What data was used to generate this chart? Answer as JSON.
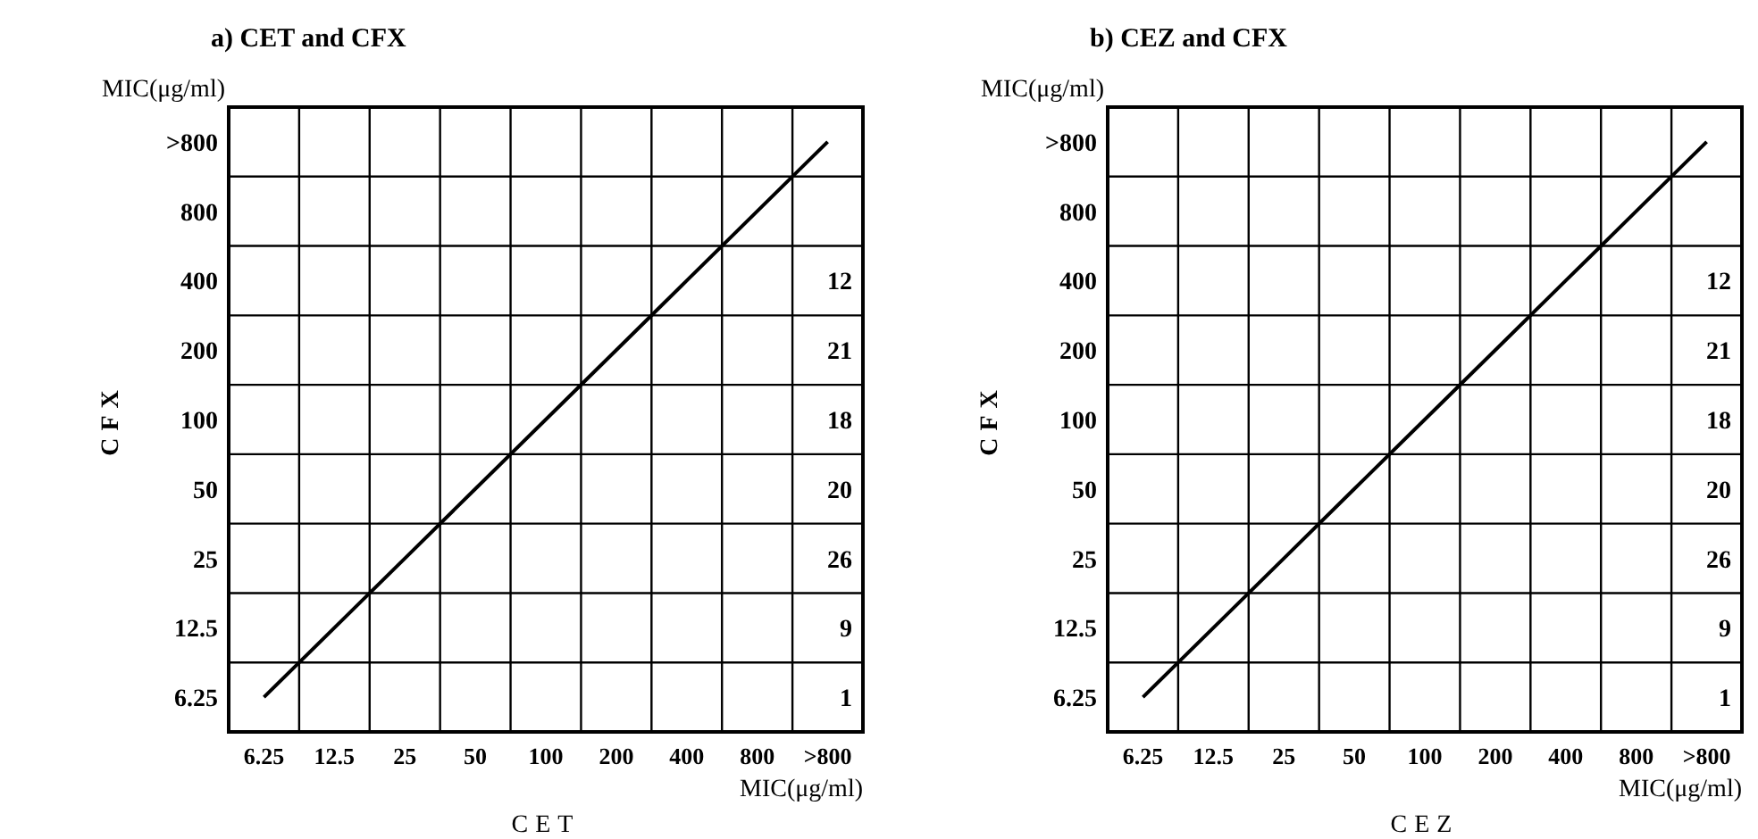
{
  "chart_data": [
    {
      "type": "heatmap",
      "title": "a) CET and CFX",
      "xlabel": "CET",
      "ylabel": "CFX",
      "annotations": [
        "MIC(μg/ml)",
        "MIC(μg/ml)"
      ],
      "categories": [
        "6.25",
        "12.5",
        "25",
        "50",
        "100",
        "200",
        "400",
        "800",
        ">800"
      ],
      "y_categories": [
        ">800",
        "800",
        "400",
        "200",
        "100",
        "50",
        "25",
        "12.5",
        "6.25"
      ],
      "cells": [
        [
          null,
          null,
          null,
          null,
          null,
          null,
          null,
          null,
          null
        ],
        [
          null,
          null,
          null,
          null,
          null,
          null,
          null,
          null,
          null
        ],
        [
          null,
          null,
          null,
          null,
          null,
          null,
          null,
          null,
          12
        ],
        [
          null,
          null,
          null,
          null,
          null,
          null,
          null,
          null,
          21
        ],
        [
          null,
          null,
          null,
          null,
          null,
          null,
          null,
          null,
          18
        ],
        [
          null,
          null,
          null,
          null,
          null,
          null,
          null,
          null,
          20
        ],
        [
          null,
          null,
          null,
          null,
          null,
          null,
          null,
          null,
          26
        ],
        [
          null,
          null,
          null,
          null,
          null,
          null,
          null,
          null,
          9
        ],
        [
          null,
          null,
          null,
          null,
          null,
          null,
          null,
          null,
          1
        ]
      ],
      "series": [
        {
          "type": "line",
          "color": "#000000",
          "x": [
            "6.25",
            "12.5",
            "25",
            "50",
            "100",
            "200",
            "400",
            "800",
            ">800"
          ],
          "values": [
            8,
            7,
            6,
            5,
            4,
            3,
            2,
            1,
            0
          ],
          "value_labels": [
            null,
            null,
            null,
            null,
            null,
            null,
            null,
            null,
            null
          ]
        }
      ],
      "data_labels": true,
      "grid": true
    },
    {
      "type": "heatmap",
      "title": "b) CEZ and CFX",
      "xlabel": "CEZ",
      "ylabel": "CFX",
      "annotations": [
        "MIC(μg/ml)",
        "MIC(μg/ml)"
      ],
      "categories": [
        "6.25",
        "12.5",
        "25",
        "50",
        "100",
        "200",
        "400",
        "800",
        ">800"
      ],
      "y_categories": [
        ">800",
        "800",
        "400",
        "200",
        "100",
        "50",
        "25",
        "12.5",
        "6.25"
      ],
      "cells": [
        [
          null,
          null,
          null,
          null,
          null,
          null,
          null,
          null,
          null
        ],
        [
          null,
          null,
          null,
          null,
          null,
          null,
          null,
          null,
          null
        ],
        [
          null,
          null,
          null,
          null,
          null,
          null,
          null,
          null,
          12
        ],
        [
          null,
          null,
          null,
          null,
          null,
          null,
          null,
          null,
          21
        ],
        [
          null,
          null,
          null,
          null,
          null,
          null,
          null,
          null,
          18
        ],
        [
          null,
          null,
          null,
          null,
          null,
          null,
          null,
          null,
          20
        ],
        [
          null,
          null,
          null,
          null,
          null,
          null,
          null,
          null,
          26
        ],
        [
          null,
          null,
          null,
          null,
          null,
          null,
          null,
          null,
          9
        ],
        [
          null,
          null,
          null,
          null,
          null,
          null,
          null,
          null,
          1
        ]
      ],
      "series": [
        {
          "type": "line",
          "color": "#000000",
          "x": [
            "6.25",
            "12.5",
            "25",
            "50",
            "100",
            "200",
            "400",
            "800",
            ">800"
          ],
          "values": [
            8,
            7,
            6,
            5,
            4,
            3,
            2,
            1,
            0
          ],
          "value_labels": [
            null,
            null,
            null,
            null,
            null,
            null,
            null,
            null,
            null
          ]
        }
      ],
      "data_labels": true,
      "grid": true
    }
  ]
}
